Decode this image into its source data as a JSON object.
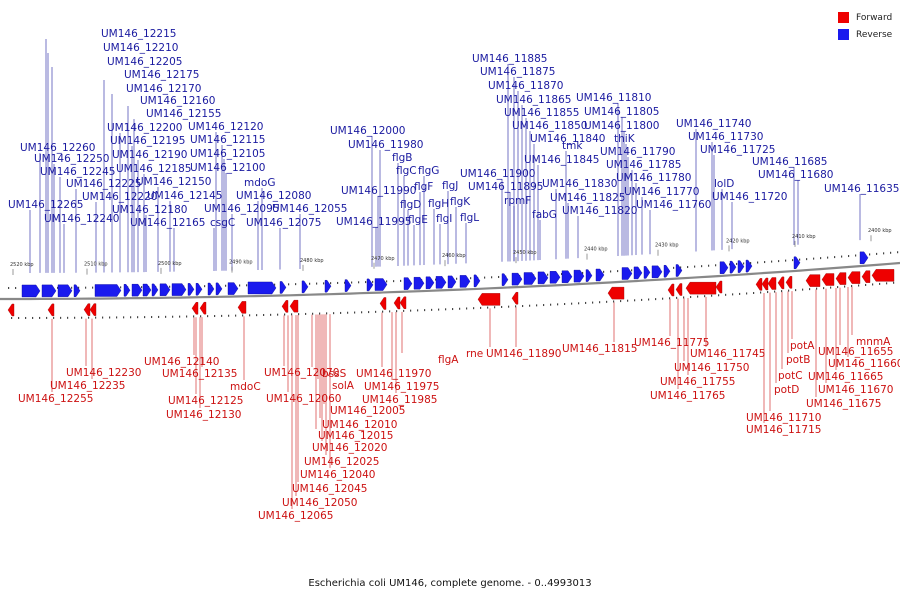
{
  "legend": {
    "forward": {
      "label": "Forward",
      "color": "#ee0000"
    },
    "reverse": {
      "label": "Reverse",
      "color": "#1a1aee"
    }
  },
  "caption": "Escherichia coli UM146, complete genome. - 0..4993013",
  "ticks": [
    "2520 kbp",
    "2510 kbp",
    "2500 kbp",
    "2490 kbp",
    "2480 kbp",
    "2470 kbp",
    "2460 kbp",
    "2450 kbp",
    "2440 kbp",
    "2430 kbp",
    "2420 kbp",
    "2410 kbp",
    "2400 kbp"
  ],
  "reverse_labels": [
    "UM146_12215",
    "UM146_12210",
    "UM146_12205",
    "UM146_12175",
    "UM146_12170",
    "UM146_12160",
    "UM146_12155",
    "UM146_12120",
    "UM146_12200",
    "UM146_12115",
    "UM146_12195",
    "UM146_12260",
    "UM146_12190",
    "UM146_12105",
    "UM146_12250",
    "UM146_12185",
    "UM146_12100",
    "UM146_12245",
    "UM146_12225",
    "UM146_12150",
    "mdoG",
    "UM146_12220",
    "UM146_12145",
    "UM146_12080",
    "UM146_12265",
    "UM146_12180",
    "UM146_12095",
    "UM146_12055",
    "UM146_12240",
    "UM146_12165",
    "csgC",
    "UM146_12075",
    "UM146_12000",
    "UM146_11980",
    "flgB",
    "flgC",
    "flgG",
    "flgF",
    "flgJ",
    "UM146_11990",
    "flgD",
    "flgH",
    "flgK",
    "flgE",
    "flgI",
    "flgL",
    "UM146_11995",
    "UM146_11885",
    "UM146_11875",
    "UM146_11870",
    "UM146_11865",
    "UM146_11855",
    "UM146_11850",
    "UM146_11840",
    "UM146_11845",
    "UM146_11900",
    "UM146_11895",
    "tmk",
    "UM146_11830",
    "rpmF",
    "fabG",
    "UM146_11825",
    "UM146_11820",
    "UM146_11810",
    "UM146_11805",
    "UM146_11800",
    "thiK",
    "UM146_11790",
    "UM146_11785",
    "UM146_11780",
    "UM146_11770",
    "UM146_11760",
    "UM146_11740",
    "UM146_11730",
    "UM146_11725",
    "lolD",
    "UM146_11720",
    "UM146_11685",
    "UM146_11680",
    "UM146_11635"
  ],
  "forward_labels": [
    "UM146_12140",
    "UM146_12135",
    "UM146_12230",
    "UM146_12235",
    "UM146_12255",
    "mdoC",
    "UM146_12125",
    "UM146_12130",
    "UM146_12070",
    "UM146_12060",
    "bssS",
    "solA",
    "UM146_12005",
    "UM146_12010",
    "UM146_12015",
    "UM146_12020",
    "UM146_12025",
    "UM146_12040",
    "UM146_12045",
    "UM146_12050",
    "UM146_12065",
    "UM146_11970",
    "UM146_11975",
    "UM146_11985",
    "flgA",
    "rne",
    "UM146_11890",
    "UM146_11815",
    "UM146_11775",
    "UM146_11745",
    "UM146_11750",
    "UM146_11755",
    "UM146_11765",
    "potA",
    "potB",
    "potC",
    "potD",
    "UM146_11710",
    "UM146_11715",
    "mnmA",
    "UM146_11655",
    "UM146_11660",
    "UM146_11665",
    "UM146_11670",
    "UM146_11675"
  ]
}
